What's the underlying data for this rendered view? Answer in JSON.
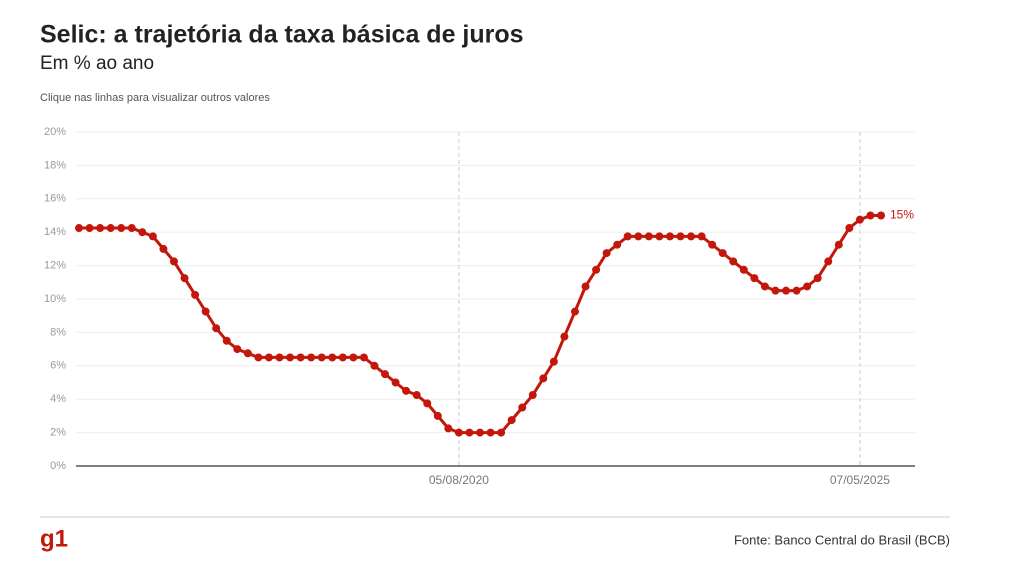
{
  "header": {
    "note": "Clique nas linhas para visualizar outros valores"
  },
  "footer": {
    "logo": "g1",
    "source": "Fonte: Banco Central do Brasil (BCB)"
  },
  "chart_data": {
    "type": "line",
    "title": "Selic: a trajetória da taxa básica de juros",
    "subtitle": "Em % ao ano",
    "color": "#c4170c",
    "grid": true,
    "ylim": [
      0,
      20
    ],
    "yticks": [
      {
        "value": 0,
        "label": "0%"
      },
      {
        "value": 2,
        "label": "2%"
      },
      {
        "value": 4,
        "label": "4%"
      },
      {
        "value": 6,
        "label": "6%"
      },
      {
        "value": 8,
        "label": "8%"
      },
      {
        "value": 10,
        "label": "10%"
      },
      {
        "value": 12,
        "label": "12%"
      },
      {
        "value": 14,
        "label": "14%"
      },
      {
        "value": 16,
        "label": "16%"
      },
      {
        "value": 18,
        "label": "18%"
      },
      {
        "value": 20,
        "label": "20%"
      }
    ],
    "categories": [
      null,
      null,
      null,
      null,
      null,
      null,
      null,
      null,
      null,
      null,
      null,
      null,
      null,
      null,
      null,
      null,
      null,
      null,
      null,
      null,
      null,
      null,
      null,
      null,
      null,
      null,
      null,
      null,
      null,
      null,
      null,
      null,
      null,
      null,
      null,
      null,
      "05/08/2020",
      null,
      null,
      null,
      null,
      null,
      null,
      null,
      null,
      null,
      null,
      null,
      null,
      null,
      null,
      null,
      null,
      null,
      null,
      null,
      null,
      null,
      null,
      null,
      null,
      null,
      null,
      null,
      null,
      null,
      null,
      null,
      null,
      null,
      null,
      null,
      null,
      null,
      "07/05/2025",
      null,
      null
    ],
    "values": [
      14.25,
      14.25,
      14.25,
      14.25,
      14.25,
      14.25,
      14.0,
      13.75,
      13.0,
      12.25,
      11.25,
      10.25,
      9.25,
      8.25,
      7.5,
      7.0,
      6.75,
      6.5,
      6.5,
      6.5,
      6.5,
      6.5,
      6.5,
      6.5,
      6.5,
      6.5,
      6.5,
      6.5,
      6.0,
      5.5,
      5.0,
      4.5,
      4.25,
      3.75,
      3.0,
      2.25,
      2.0,
      2.0,
      2.0,
      2.0,
      2.0,
      2.75,
      3.5,
      4.25,
      5.25,
      6.25,
      7.75,
      9.25,
      10.75,
      11.75,
      12.75,
      13.25,
      13.75,
      13.75,
      13.75,
      13.75,
      13.75,
      13.75,
      13.75,
      13.75,
      13.25,
      12.75,
      12.25,
      11.75,
      11.25,
      10.75,
      10.5,
      10.5,
      10.5,
      10.75,
      11.25,
      12.25,
      13.25,
      14.25,
      14.75,
      15,
      15
    ],
    "value_labels": [
      null,
      null,
      null,
      null,
      null,
      null,
      null,
      null,
      null,
      null,
      null,
      null,
      null,
      null,
      null,
      null,
      null,
      null,
      null,
      null,
      null,
      null,
      null,
      null,
      null,
      null,
      null,
      null,
      null,
      null,
      null,
      null,
      null,
      null,
      null,
      null,
      null,
      null,
      null,
      null,
      null,
      null,
      null,
      null,
      null,
      null,
      null,
      null,
      null,
      null,
      null,
      null,
      null,
      null,
      null,
      null,
      null,
      null,
      null,
      null,
      null,
      null,
      null,
      null,
      null,
      null,
      null,
      null,
      null,
      null,
      null,
      null,
      null,
      null,
      null,
      null,
      "15%"
    ]
  }
}
